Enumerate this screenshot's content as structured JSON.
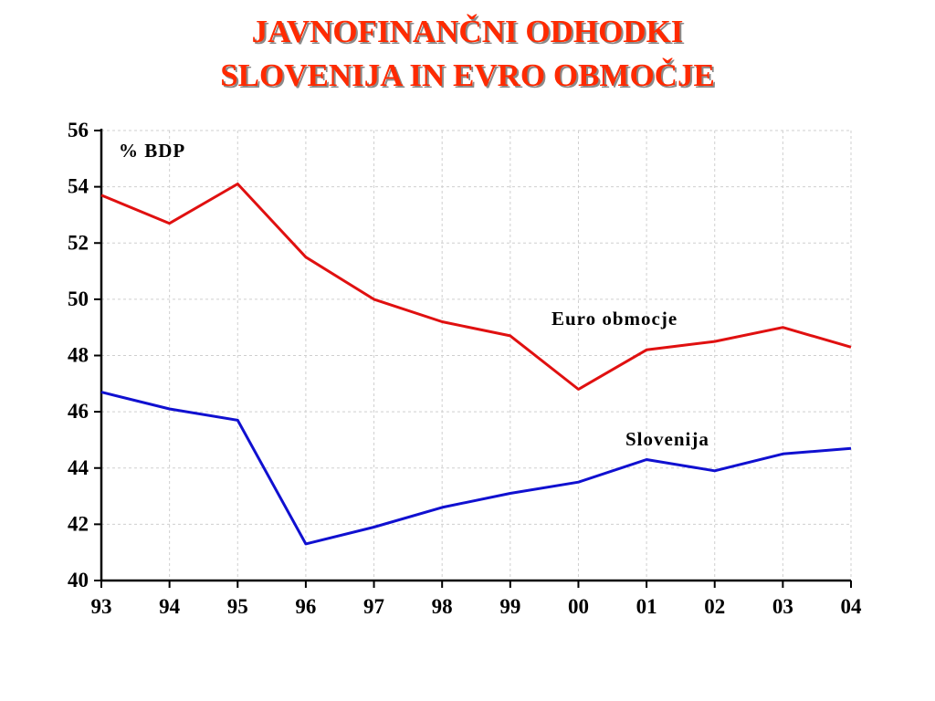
{
  "title": {
    "line1": "JAVNOFINANČNI ODHODKI",
    "line2": "SLOVENIJA IN EVRO OBMOČJE"
  },
  "chart_data": {
    "type": "line",
    "unit_label": "% BDP",
    "xlabel": "",
    "ylabel": "",
    "categories": [
      "93",
      "94",
      "95",
      "96",
      "97",
      "98",
      "99",
      "00",
      "01",
      "02",
      "03",
      "04"
    ],
    "ylim": [
      40,
      56
    ],
    "yticks": [
      40,
      42,
      44,
      46,
      48,
      50,
      52,
      54,
      56
    ],
    "grid": true,
    "legend": "inline labels",
    "series": [
      {
        "name": "Euro obmocje",
        "color": "#e01010",
        "values": [
          53.7,
          52.7,
          54.1,
          51.5,
          50.0,
          49.2,
          48.7,
          46.8,
          48.2,
          48.5,
          49.0,
          48.3
        ]
      },
      {
        "name": "Slovenija",
        "color": "#1010d0",
        "values": [
          46.7,
          46.1,
          45.7,
          41.3,
          41.9,
          42.6,
          43.1,
          43.5,
          44.3,
          43.9,
          44.5,
          44.7
        ]
      }
    ]
  }
}
